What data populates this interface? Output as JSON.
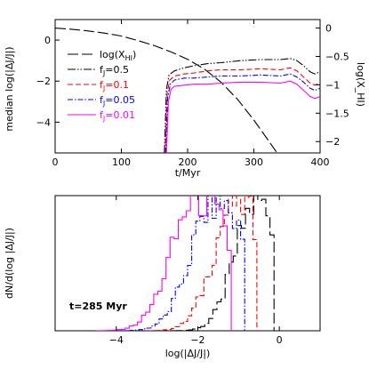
{
  "chart_data": [
    {
      "type": "line",
      "xlabel": "t/Myr",
      "ylabel": "median log(|ΔJ/J|)",
      "y2label": "log(X_HI)",
      "xlim": [
        0,
        400
      ],
      "ylim": [
        -5.5,
        1.0
      ],
      "y2lim": [
        -2.2,
        0.15
      ],
      "xticks": [
        0,
        100,
        200,
        300,
        400
      ],
      "yticks": [
        -4,
        -2,
        0
      ],
      "y2ticks": [
        0,
        -0.5,
        -1,
        -1.5,
        -2
      ],
      "xtick_labels": [
        "0",
        "100",
        "200",
        "300",
        "400"
      ],
      "ytick_labels": [
        "−4",
        "−2",
        "0"
      ],
      "y2tick_labels": [
        "0",
        "−0.5",
        "−1",
        "−1.5",
        "−2"
      ],
      "legend_position": "left",
      "series": [
        {
          "name": "log(X_HI)",
          "axis": "right",
          "color": "#000000",
          "dash": "long-dash",
          "x": [
            0,
            25,
            50,
            75,
            100,
            125,
            150,
            175,
            200,
            225,
            250,
            275,
            300,
            320,
            335
          ],
          "y": [
            0.0,
            -0.02,
            -0.05,
            -0.09,
            -0.14,
            -0.22,
            -0.31,
            -0.42,
            -0.55,
            -0.72,
            -0.95,
            -1.25,
            -1.62,
            -1.95,
            -2.2
          ]
        },
        {
          "name": "f_J=0.5",
          "axis": "left",
          "color": "#000000",
          "dash": "dash-dot-dot",
          "x": [
            165,
            168,
            172,
            180,
            195,
            210,
            230,
            250,
            280,
            310,
            340,
            355,
            365,
            375,
            385,
            392,
            400
          ],
          "y": [
            -5.5,
            -2.4,
            -1.7,
            -1.5,
            -1.35,
            -1.25,
            -1.15,
            -1.1,
            -1.0,
            -0.95,
            -0.95,
            -0.9,
            -1.0,
            -1.25,
            -1.55,
            -1.65,
            -1.55
          ]
        },
        {
          "name": "f_J=0.1",
          "axis": "left",
          "color": "#ff0000",
          "dash": "dash",
          "x": [
            166,
            169,
            173,
            180,
            195,
            210,
            230,
            250,
            280,
            310,
            340,
            355,
            365,
            375,
            385,
            392,
            400
          ],
          "y": [
            -5.5,
            -2.6,
            -1.95,
            -1.75,
            -1.65,
            -1.6,
            -1.5,
            -1.45,
            -1.45,
            -1.4,
            -1.45,
            -1.35,
            -1.5,
            -1.8,
            -2.1,
            -2.2,
            -2.1
          ]
        },
        {
          "name": "f_J=0.05",
          "axis": "left",
          "color": "#0000ff",
          "dash": "dash-dot",
          "x": [
            167,
            170,
            174,
            180,
            195,
            210,
            230,
            250,
            280,
            310,
            340,
            355,
            365,
            375,
            385,
            392,
            400
          ],
          "y": [
            -5.5,
            -2.8,
            -2.15,
            -1.95,
            -1.85,
            -1.85,
            -1.8,
            -1.75,
            -1.75,
            -1.7,
            -1.75,
            -1.65,
            -1.8,
            -2.05,
            -2.35,
            -2.45,
            -2.35
          ]
        },
        {
          "name": "f_J=0.01",
          "axis": "left",
          "color": "#ff00ff",
          "dash": "solid",
          "x": [
            168,
            171,
            175,
            180,
            195,
            210,
            230,
            250,
            280,
            310,
            340,
            355,
            365,
            375,
            385,
            392,
            400
          ],
          "y": [
            -5.5,
            -3.0,
            -2.4,
            -2.25,
            -2.2,
            -2.15,
            -2.15,
            -2.1,
            -2.05,
            -2.05,
            -2.1,
            -2.0,
            -2.15,
            -2.45,
            -2.75,
            -2.85,
            -2.75
          ]
        }
      ]
    },
    {
      "type": "histogram",
      "xlabel": "log(|ΔJ/J|)",
      "ylabel": "dN/d(log |ΔJ/J|)",
      "xlim": [
        -5.5,
        1.0
      ],
      "ylim": [
        0,
        1.0
      ],
      "xticks": [
        -4,
        -2,
        0
      ],
      "xtick_labels": [
        "−4",
        "−2",
        "0"
      ],
      "annotation": "t=285 Myr",
      "bin_width": 0.1,
      "series": [
        {
          "name": "f_J=0.5",
          "color": "#000000",
          "dash": "long-dash",
          "center": -0.55,
          "sigma": 0.52,
          "cutoff": -0.05,
          "peak": 0.95
        },
        {
          "name": "f_J=0.1",
          "color": "#ff0000",
          "dash": "dash",
          "center": -1.05,
          "sigma": 0.55,
          "cutoff": -0.5,
          "peak": 0.96
        },
        {
          "name": "f_J=0.05",
          "color": "#0000ff",
          "dash": "dash-dot",
          "center": -1.55,
          "sigma": 0.6,
          "cutoff": -0.85,
          "peak": 0.97
        },
        {
          "name": "f_J=0.01",
          "color": "#ff00ff",
          "dash": "solid",
          "center": -2.0,
          "sigma": 0.62,
          "cutoff": -1.1,
          "peak": 1.0
        }
      ]
    }
  ]
}
